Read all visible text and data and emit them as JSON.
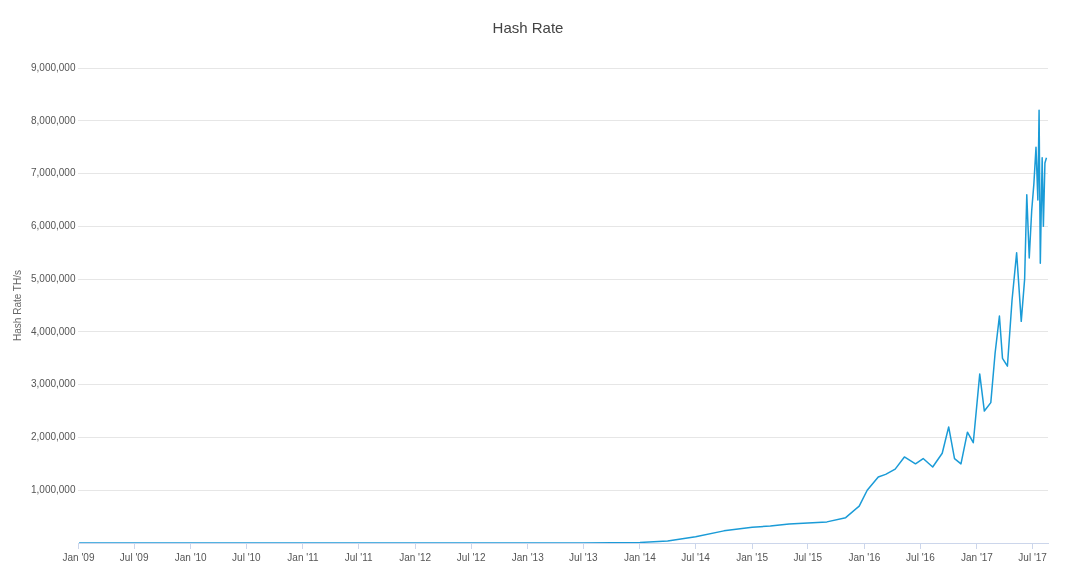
{
  "chart_data": {
    "type": "line",
    "title": "Hash Rate",
    "ylabel": "Hash Rate TH/s",
    "x": [
      "2009-01-03",
      "2010-01-01",
      "2011-01-01",
      "2012-01-01",
      "2013-01-01",
      "2013-07-01",
      "2014-01-01",
      "2014-04-01",
      "2014-07-01",
      "2014-10-01",
      "2015-01-01",
      "2015-03-01",
      "2015-05-01",
      "2015-07-01",
      "2015-09-01",
      "2015-11-01",
      "2015-12-15",
      "2016-01-10",
      "2016-02-15",
      "2016-03-10",
      "2016-04-10",
      "2016-05-10",
      "2016-06-15",
      "2016-07-10",
      "2016-08-10",
      "2016-09-10",
      "2016-10-01",
      "2016-10-20",
      "2016-11-10",
      "2016-12-01",
      "2016-12-20",
      "2017-01-10",
      "2017-01-25",
      "2017-02-15",
      "2017-03-01",
      "2017-03-15",
      "2017-03-25",
      "2017-04-10",
      "2017-04-25",
      "2017-05-10",
      "2017-05-25",
      "2017-06-05",
      "2017-06-12",
      "2017-06-20",
      "2017-06-28",
      "2017-07-05",
      "2017-07-12",
      "2017-07-18",
      "2017-07-22",
      "2017-07-26",
      "2017-08-01",
      "2017-08-05",
      "2017-08-10",
      "2017-08-15"
    ],
    "series": [
      {
        "color": "#1a9bd7",
        "values": [
          0,
          0,
          0,
          0,
          0,
          0,
          10000,
          40000,
          120000,
          230000,
          300000,
          320000,
          360000,
          380000,
          400000,
          480000,
          700000,
          1000000,
          1250000,
          1300000,
          1400000,
          1630000,
          1500000,
          1600000,
          1440000,
          1700000,
          2200000,
          1600000,
          1500000,
          2100000,
          1900000,
          3200000,
          2500000,
          2660000,
          3600000,
          4300000,
          3500000,
          3350000,
          4600000,
          5500000,
          4200000,
          5000000,
          6600000,
          5400000,
          6300000,
          6800000,
          7500000,
          6500000,
          8200000,
          5300000,
          7300000,
          6000000,
          7200000,
          7300000
        ]
      }
    ],
    "xlim": [
      "2009-01-01",
      "2017-08-20"
    ],
    "xticks": [
      {
        "value": "2009-01-01",
        "label": "Jan '09"
      },
      {
        "value": "2009-07-01",
        "label": "Jul '09"
      },
      {
        "value": "2010-01-01",
        "label": "Jan '10"
      },
      {
        "value": "2010-07-01",
        "label": "Jul '10"
      },
      {
        "value": "2011-01-01",
        "label": "Jan '11"
      },
      {
        "value": "2011-07-01",
        "label": "Jul '11"
      },
      {
        "value": "2012-01-01",
        "label": "Jan '12"
      },
      {
        "value": "2012-07-01",
        "label": "Jul '12"
      },
      {
        "value": "2013-01-01",
        "label": "Jan '13"
      },
      {
        "value": "2013-07-01",
        "label": "Jul '13"
      },
      {
        "value": "2014-01-01",
        "label": "Jan '14"
      },
      {
        "value": "2014-07-01",
        "label": "Jul '14"
      },
      {
        "value": "2015-01-01",
        "label": "Jan '15"
      },
      {
        "value": "2015-07-01",
        "label": "Jul '15"
      },
      {
        "value": "2016-01-01",
        "label": "Jan '16"
      },
      {
        "value": "2016-07-01",
        "label": "Jul '16"
      },
      {
        "value": "2017-01-01",
        "label": "Jan '17"
      },
      {
        "value": "2017-07-01",
        "label": "Jul '17"
      }
    ],
    "ylim": [
      0,
      9000000
    ],
    "yticks": [
      {
        "value": 0,
        "label": null
      },
      {
        "value": 1000000,
        "label": "1,000,000"
      },
      {
        "value": 2000000,
        "label": "2,000,000"
      },
      {
        "value": 3000000,
        "label": "3,000,000"
      },
      {
        "value": 4000000,
        "label": "4,000,000"
      },
      {
        "value": 5000000,
        "label": "5,000,000"
      },
      {
        "value": 6000000,
        "label": "6,000,000"
      },
      {
        "value": 7000000,
        "label": "7,000,000"
      },
      {
        "value": 8000000,
        "label": "8,000,000"
      },
      {
        "value": 9000000,
        "label": "9,000,000"
      }
    ],
    "grid": "y",
    "legend": false,
    "marker": "none",
    "line_style": "solid"
  }
}
